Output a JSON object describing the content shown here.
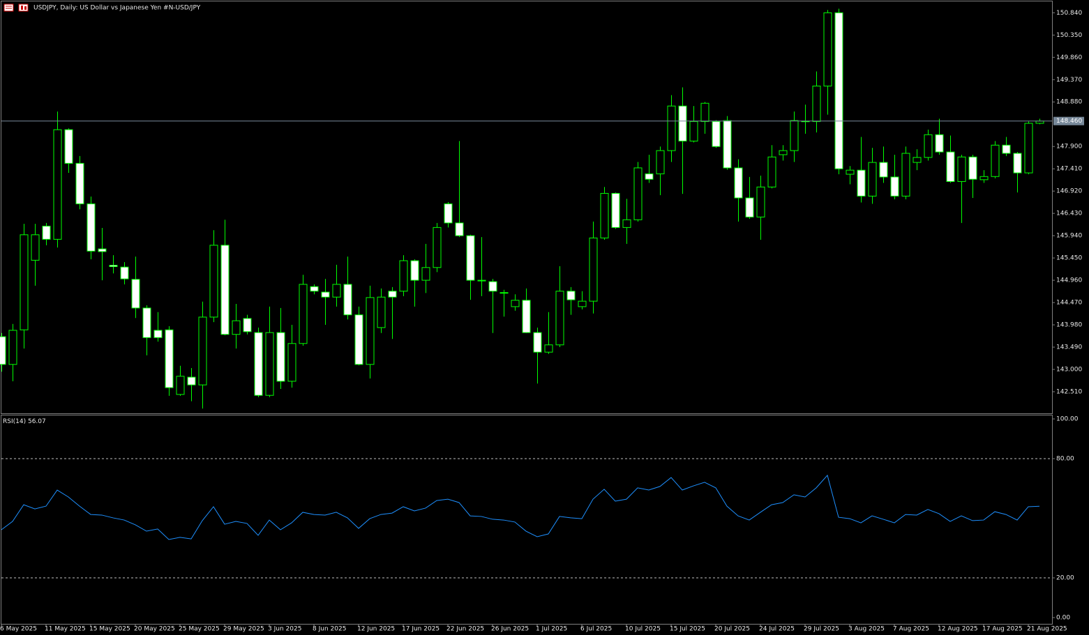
{
  "chart_data": [
    {
      "type": "candlestick",
      "title": "USDJPY, Daily:  US Dollar vs  Japanese Yen #N-USD/JPY",
      "categories": [
        "6 May 2025",
        null,
        null,
        null,
        "11 May 2025",
        null,
        null,
        null,
        "15 May 2025",
        null,
        null,
        null,
        "20 May 2025",
        null,
        null,
        null,
        "25 May 2025",
        null,
        null,
        null,
        "29 May 2025",
        null,
        null,
        null,
        "3 Jun 2025",
        null,
        null,
        null,
        "8 Jun 2025",
        null,
        null,
        null,
        "12 Jun 2025",
        null,
        null,
        null,
        "17 Jun 2025",
        null,
        null,
        null,
        "22 Jun 2025",
        null,
        null,
        null,
        "26 Jun 2025",
        null,
        null,
        null,
        "1 Jul 2025",
        null,
        null,
        null,
        "6 Jul 2025",
        null,
        null,
        null,
        "10 Jul 2025",
        null,
        null,
        null,
        "15 Jul 2025",
        null,
        null,
        null,
        "20 Jul 2025",
        null,
        null,
        null,
        "24 Jul 2025",
        null,
        null,
        null,
        "29 Jul 2025",
        null,
        null,
        null,
        "3 Aug 2025",
        null,
        null,
        null,
        "7 Aug 2025",
        null,
        null,
        null,
        "12 Aug 2025",
        null,
        null,
        null,
        "17 Aug 2025",
        null,
        null,
        null,
        "21 Aug 2025",
        null
      ],
      "open": [
        143.72,
        143.11,
        143.87,
        145.4,
        146.15,
        145.86,
        148.27,
        147.53,
        146.64,
        145.65,
        145.29,
        145.25,
        144.98,
        144.35,
        143.86,
        143.87,
        142.45,
        142.83,
        142.66,
        144.15,
        145.73,
        143.77,
        144.12,
        143.81,
        142.43,
        143.81,
        142.74,
        143.57,
        144.82,
        144.7,
        144.59,
        144.87,
        144.2,
        143.11,
        143.92,
        144.72,
        144.72,
        145.39,
        144.96,
        145.24,
        146.64,
        146.22,
        145.94,
        144.96,
        144.93,
        144.69,
        144.38,
        144.52,
        143.81,
        143.38,
        143.54,
        144.72,
        144.38,
        144.5,
        145.89,
        146.87,
        146.12,
        146.29,
        147.3,
        147.3,
        147.81,
        148.79,
        148.02,
        148.45,
        148.45,
        148.47,
        147.43,
        146.77,
        146.35,
        147.01,
        147.72,
        147.81,
        148.45,
        148.45,
        149.23,
        150.84,
        147.29,
        147.38,
        146.81,
        147.55,
        147.23,
        146.81,
        147.55,
        147.66,
        148.16,
        147.78,
        147.13,
        147.67,
        147.17,
        147.24,
        147.93,
        147.75,
        147.32,
        148.41
      ],
      "high": [
        143.8,
        144.0,
        146.2,
        146.2,
        146.22,
        148.67,
        148.3,
        147.69,
        146.8,
        146.11,
        145.51,
        145.36,
        145.48,
        144.41,
        144.26,
        143.95,
        143.08,
        143.03,
        144.49,
        146.06,
        146.29,
        144.44,
        144.2,
        143.92,
        144.38,
        144.35,
        143.98,
        145.08,
        144.87,
        144.99,
        145.3,
        145.48,
        144.38,
        144.84,
        144.78,
        144.81,
        145.51,
        145.42,
        145.76,
        146.22,
        146.68,
        148.02,
        145.96,
        145.91,
        144.99,
        144.75,
        144.65,
        144.78,
        143.92,
        144.26,
        145.27,
        144.81,
        144.72,
        146.25,
        147.01,
        146.89,
        146.75,
        147.56,
        147.72,
        147.9,
        149.03,
        149.2,
        148.79,
        148.88,
        148.48,
        148.57,
        147.62,
        147.23,
        147.26,
        147.93,
        147.93,
        148.67,
        148.82,
        149.55,
        150.9,
        150.93,
        147.47,
        148.11,
        147.87,
        147.9,
        147.72,
        147.9,
        147.84,
        148.27,
        148.51,
        148.14,
        147.72,
        147.72,
        147.38,
        148.02,
        148.11,
        147.78,
        148.45,
        148.51
      ],
      "low": [
        142.95,
        142.74,
        143.46,
        144.84,
        145.73,
        145.68,
        147.32,
        146.52,
        145.42,
        144.96,
        145.11,
        144.87,
        144.13,
        143.31,
        143.61,
        142.42,
        142.42,
        142.3,
        142.14,
        144.04,
        143.75,
        143.46,
        143.77,
        142.39,
        142.39,
        142.57,
        142.6,
        143.52,
        144.65,
        143.98,
        144.38,
        144.1,
        143.09,
        142.8,
        143.8,
        143.67,
        144.61,
        144.38,
        144.68,
        145.14,
        146.12,
        145.91,
        144.53,
        144.61,
        143.8,
        144.16,
        144.29,
        143.8,
        142.69,
        143.34,
        143.49,
        144.2,
        144.32,
        144.23,
        145.85,
        146.09,
        145.76,
        146.25,
        147.1,
        146.83,
        147.56,
        146.86,
        147.99,
        148.18,
        147.87,
        147.39,
        146.25,
        146.31,
        145.85,
        146.98,
        147.59,
        147.56,
        148.18,
        148.21,
        148.6,
        147.29,
        147.07,
        146.67,
        146.64,
        147.1,
        146.74,
        146.74,
        147.38,
        147.59,
        147.72,
        147.1,
        146.22,
        146.77,
        147.1,
        147.2,
        147.69,
        146.89,
        147.29,
        148.39
      ],
      "close": [
        143.11,
        143.86,
        145.96,
        145.96,
        145.86,
        148.27,
        147.53,
        146.64,
        145.6,
        145.59,
        145.26,
        144.99,
        144.35,
        143.7,
        143.7,
        142.6,
        142.85,
        142.66,
        144.15,
        145.73,
        143.77,
        144.07,
        143.83,
        142.43,
        143.81,
        142.74,
        143.57,
        144.87,
        144.72,
        144.59,
        144.87,
        144.2,
        143.11,
        144.58,
        144.59,
        144.59,
        145.39,
        144.96,
        145.24,
        146.12,
        146.22,
        145.94,
        144.96,
        144.95,
        144.72,
        144.68,
        144.52,
        143.81,
        143.38,
        143.54,
        144.72,
        144.53,
        144.5,
        145.89,
        146.87,
        146.12,
        146.29,
        147.43,
        147.18,
        147.81,
        148.79,
        148.02,
        148.45,
        148.85,
        147.9,
        147.43,
        146.77,
        146.35,
        147.01,
        147.67,
        147.81,
        148.47,
        148.46,
        149.23,
        150.84,
        147.41,
        147.38,
        146.81,
        147.55,
        147.23,
        146.81,
        147.75,
        147.66,
        148.16,
        147.78,
        147.13,
        147.67,
        147.18,
        147.24,
        147.93,
        147.75,
        147.32,
        148.41,
        148.46
      ],
      "up_color": "#00ff00",
      "down_fill": "#ffffff",
      "up_fill": "#000000",
      "ylim": [
        142.05,
        151.09
      ],
      "yticks": [
        {
          "value": 142.51,
          "label": "142.510"
        },
        {
          "value": 143.0,
          "label": "143.000"
        },
        {
          "value": 143.49,
          "label": "143.490"
        },
        {
          "value": 143.98,
          "label": "143.980"
        },
        {
          "value": 144.47,
          "label": "144.470"
        },
        {
          "value": 144.96,
          "label": "144.960"
        },
        {
          "value": 145.45,
          "label": "145.450"
        },
        {
          "value": 145.94,
          "label": "145.940"
        },
        {
          "value": 146.43,
          "label": "146.430"
        },
        {
          "value": 146.92,
          "label": "146.920"
        },
        {
          "value": 147.41,
          "label": "147.410"
        },
        {
          "value": 147.9,
          "label": "147.900"
        },
        {
          "value": 148.88,
          "label": "148.880"
        },
        {
          "value": 149.37,
          "label": "149.370"
        },
        {
          "value": 149.86,
          "label": "149.860"
        },
        {
          "value": 150.35,
          "label": "150.350"
        },
        {
          "value": 150.84,
          "label": "150.840"
        }
      ],
      "current_price": {
        "value": 148.46,
        "label": "148.460"
      }
    },
    {
      "type": "line",
      "title": "RSI(14)",
      "color": "#1e90ff",
      "values": [
        44.2,
        48.4,
        56.8,
        54.7,
        56.1,
        64.2,
        60.7,
        56.1,
        51.9,
        51.6,
        50.2,
        49.1,
        46.7,
        43.5,
        44.6,
        39.3,
        40.4,
        39.6,
        48.8,
        55.8,
        47.0,
        48.4,
        47.4,
        41.4,
        49.1,
        44.2,
        47.7,
        53.0,
        51.9,
        51.6,
        53.0,
        50.2,
        44.9,
        49.8,
        51.9,
        52.6,
        55.8,
        53.7,
        55.1,
        58.9,
        59.6,
        57.9,
        51.2,
        50.9,
        49.5,
        49.1,
        48.1,
        43.5,
        40.7,
        42.1,
        50.9,
        50.2,
        49.8,
        59.6,
        64.6,
        58.6,
        59.6,
        65.3,
        64.2,
        66.0,
        70.5,
        64.2,
        66.3,
        68.1,
        65.3,
        56.1,
        51.2,
        49.1,
        53.0,
        56.8,
        57.9,
        61.8,
        60.7,
        65.3,
        71.6,
        50.5,
        49.8,
        47.7,
        51.2,
        49.5,
        47.7,
        51.9,
        51.6,
        54.4,
        52.3,
        48.4,
        51.2,
        48.8,
        49.1,
        53.3,
        51.9,
        49.1,
        55.8,
        56.07
      ],
      "ylim": [
        0,
        100
      ],
      "yticks": [
        {
          "value": 100,
          "label": "100.00"
        },
        {
          "value": 80,
          "label": "80.00"
        },
        {
          "value": 20,
          "label": "20.00"
        },
        {
          "value": 0,
          "label": "0.00"
        }
      ],
      "levels": [
        80,
        20
      ]
    }
  ]
}
